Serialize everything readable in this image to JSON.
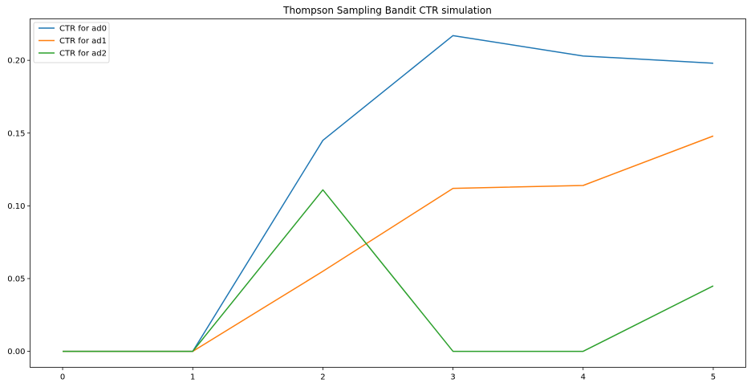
{
  "chart_data": {
    "type": "line",
    "title": "Thompson Sampling Bandit CTR simulation",
    "xlabel": "",
    "ylabel": "",
    "x": [
      0,
      1,
      2,
      3,
      4,
      5
    ],
    "xlim": [
      -0.25,
      5.25
    ],
    "ylim": [
      -0.011,
      0.2285
    ],
    "xticks": [
      0,
      1,
      2,
      3,
      4,
      5
    ],
    "yticks": [
      0.0,
      0.05,
      0.1,
      0.15,
      0.2
    ],
    "ytick_labels": [
      "0.00",
      "0.05",
      "0.10",
      "0.15",
      "0.20"
    ],
    "grid": false,
    "legend_position": "top-left",
    "series": [
      {
        "name": "CTR for ad0",
        "color": "#1f77b4",
        "values": [
          0,
          0,
          0.145,
          0.217,
          0.203,
          0.198
        ]
      },
      {
        "name": "CTR for ad1",
        "color": "#ff7f0e",
        "values": [
          0,
          0,
          0.055,
          0.112,
          0.114,
          0.148
        ]
      },
      {
        "name": "CTR for ad2",
        "color": "#2ca02c",
        "values": [
          0,
          0,
          0.111,
          0,
          0,
          0.045
        ]
      }
    ]
  }
}
